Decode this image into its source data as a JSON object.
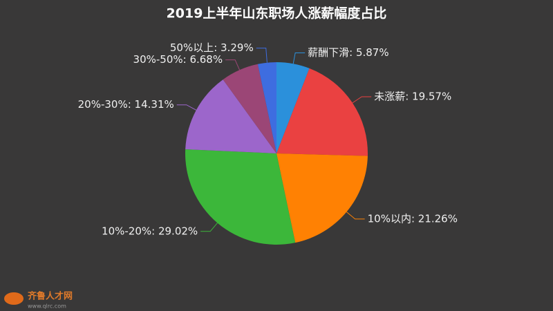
{
  "chart_data": {
    "type": "pie",
    "title": "2019上半年山东职场人涨薪幅度占比",
    "values": [
      5.87,
      19.57,
      21.26,
      29.02,
      14.31,
      6.68,
      3.29
    ],
    "value_labels": [
      "薪酬下滑: 5.87%",
      "未涨薪: 19.57%",
      "10%以内: 21.26%",
      "10%-20%: 29.02%",
      "20%-30%: 14.31%",
      "30%-50%: 6.68%",
      "50%以上: 3.29%"
    ],
    "colors": [
      "#2b90db",
      "#ea4141",
      "#ff8103",
      "#3cb73a",
      "#9c66cb",
      "#9b4676",
      "#3e6de0"
    ],
    "watermark": {
      "name": "齐鲁人才网",
      "url": "www.qlrc.com"
    }
  }
}
